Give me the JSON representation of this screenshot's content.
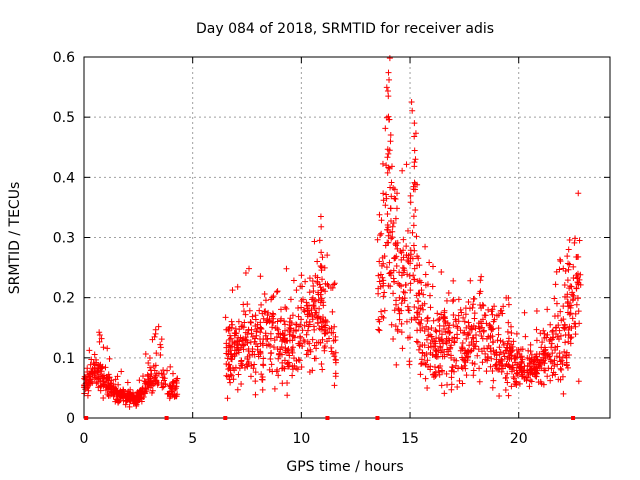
{
  "chart_data": {
    "type": "scatter",
    "title": "Day 084 of 2018, SRMTID for receiver adis",
    "xlabel": "GPS time / hours",
    "ylabel": "SRMTID / TECUs",
    "xlim": [
      0,
      24.2
    ],
    "ylim": [
      0,
      0.6
    ],
    "xticks": [
      0,
      5,
      10,
      15,
      20
    ],
    "xtick_labels": [
      "0",
      "5",
      "10",
      "15",
      "20"
    ],
    "yticks": [
      0,
      0.1,
      0.2,
      0.3,
      0.4,
      0.5,
      0.6
    ],
    "ytick_labels": [
      "0",
      "0.1",
      "0.2",
      "0.3",
      "0.4",
      "0.5",
      "0.6"
    ],
    "grid": true,
    "marker": "+",
    "color": "#ff0000",
    "series": [
      {
        "name": "SRMTID",
        "segments": [
          {
            "x_start": 0.0,
            "x_end": 4.3,
            "note": "low activity with oscillation",
            "profile": [
              [
                0.0,
                0.05
              ],
              [
                0.5,
                0.08
              ],
              [
                1.0,
                0.06
              ],
              [
                1.5,
                0.04
              ],
              [
                2.0,
                0.035
              ],
              [
                2.4,
                0.03
              ],
              [
                2.8,
                0.05
              ],
              [
                3.2,
                0.07
              ],
              [
                3.5,
                0.08
              ],
              [
                3.8,
                0.04
              ],
              [
                4.3,
                0.05
              ]
            ]
          },
          {
            "x_start": 6.5,
            "x_end": 11.6,
            "note": "moderate activity",
            "profile": [
              [
                6.5,
                0.1
              ],
              [
                7.0,
                0.11
              ],
              [
                7.5,
                0.12
              ],
              [
                8.0,
                0.13
              ],
              [
                8.5,
                0.14
              ],
              [
                9.0,
                0.13
              ],
              [
                9.5,
                0.12
              ],
              [
                10.0,
                0.14
              ],
              [
                10.5,
                0.16
              ],
              [
                11.0,
                0.18
              ],
              [
                11.3,
                0.15
              ],
              [
                11.6,
                0.1
              ]
            ]
          },
          {
            "x_start": 13.5,
            "x_end": 22.8,
            "note": "enhanced activity with peaks near 14 h and 15 h",
            "profile": [
              [
                13.5,
                0.22
              ],
              [
                13.8,
                0.25
              ],
              [
                14.0,
                0.35
              ],
              [
                14.2,
                0.28
              ],
              [
                14.5,
                0.18
              ],
              [
                15.0,
                0.25
              ],
              [
                15.2,
                0.3
              ],
              [
                15.5,
                0.15
              ],
              [
                16.0,
                0.12
              ],
              [
                17.0,
                0.12
              ],
              [
                17.5,
                0.13
              ],
              [
                18.0,
                0.14
              ],
              [
                18.5,
                0.15
              ],
              [
                19.0,
                0.11
              ],
              [
                19.5,
                0.1
              ],
              [
                20.0,
                0.09
              ],
              [
                20.5,
                0.08
              ],
              [
                21.0,
                0.09
              ],
              [
                21.5,
                0.11
              ],
              [
                22.0,
                0.13
              ],
              [
                22.5,
                0.17
              ],
              [
                22.8,
                0.19
              ]
            ]
          }
        ],
        "peaks": [
          [
            14.0,
            0.535
          ],
          [
            14.1,
            0.46
          ],
          [
            15.2,
            0.49
          ],
          [
            15.25,
            0.43
          ],
          [
            13.9,
            0.42
          ],
          [
            14.3,
            0.38
          ],
          [
            10.9,
            0.335
          ],
          [
            22.8,
            0.295
          ],
          [
            22.3,
            0.28
          ]
        ]
      }
    ],
    "rug_markers_x": [
      0.1,
      3.8,
      6.5,
      11.2,
      13.5,
      22.5
    ]
  }
}
